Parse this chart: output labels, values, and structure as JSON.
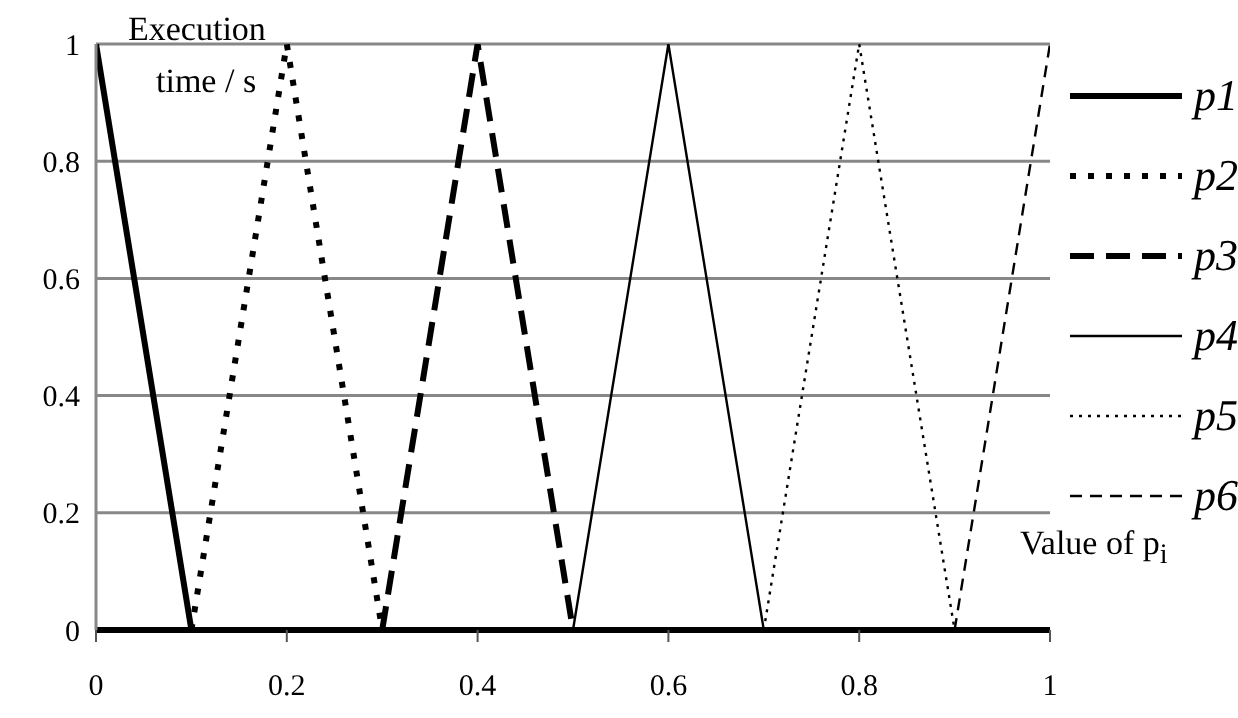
{
  "chart_data": {
    "type": "line",
    "xlabel": "Value of p$_{i}$",
    "ylabel": "Execution time / s",
    "xlim": [
      0,
      1
    ],
    "ylim": [
      0,
      1
    ],
    "xticks": [
      0,
      0.2,
      0.4,
      0.6,
      0.8,
      1
    ],
    "yticks": [
      0,
      0.2,
      0.4,
      0.6,
      0.8,
      1
    ],
    "grid": "y",
    "legend": "right",
    "marker": "none",
    "series": [
      {
        "name": "p1",
        "color": "#000000",
        "line_style": "solid",
        "x": [
          0,
          0.1
        ],
        "values": [
          1,
          0
        ]
      },
      {
        "name": "p2",
        "color": "#000000",
        "line_style": "dotted",
        "x": [
          0.1,
          0.2,
          0.3
        ],
        "values": [
          0,
          1,
          0
        ]
      },
      {
        "name": "p3",
        "color": "#000000",
        "line_style": "dashed",
        "x": [
          0.3,
          0.4,
          0.5
        ],
        "values": [
          0,
          1,
          0
        ]
      },
      {
        "name": "p4",
        "color": "#000000",
        "line_style": "solid",
        "x": [
          0.5,
          0.6,
          0.7
        ],
        "values": [
          0,
          1,
          0
        ]
      },
      {
        "name": "p5",
        "color": "#000000",
        "line_style": "dotted",
        "x": [
          0.7,
          0.8,
          0.9
        ],
        "values": [
          0,
          1,
          0
        ]
      },
      {
        "name": "p6",
        "color": "#000000",
        "line_style": "dashed",
        "x": [
          0.9,
          1
        ],
        "values": [
          0,
          1
        ]
      }
    ]
  }
}
